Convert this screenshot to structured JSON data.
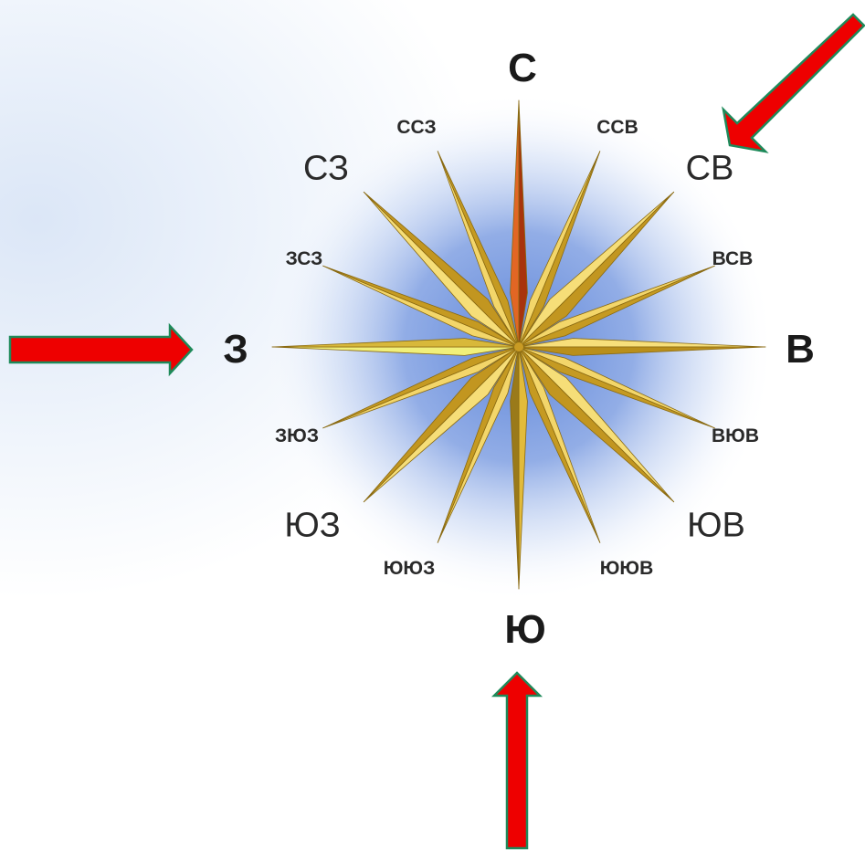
{
  "labels": {
    "n": "С",
    "s": "Ю",
    "w": "З",
    "e": "В",
    "nw": "СЗ",
    "ne": "СВ",
    "sw": "ЮЗ",
    "se": "ЮВ",
    "nnw": "ССЗ",
    "nne": "ССВ",
    "wnw": "ЗСЗ",
    "ene": "ВСВ",
    "wsw": "ЗЮЗ",
    "ese": "ВЮВ",
    "ssw": "ЮЮЗ",
    "sse": "ЮЮВ"
  },
  "colors": {
    "arrow_fill": "#ee0000",
    "arrow_stroke": "#1e8a5a",
    "north_point": "#c1440e",
    "gold_light": "#f5dd74",
    "gold_dark": "#b8921d",
    "glow": "#5f86d9"
  },
  "arrows": [
    {
      "name": "arrow-to-ne",
      "points_at": "СВ"
    },
    {
      "name": "arrow-to-w",
      "points_at": "З"
    },
    {
      "name": "arrow-to-s",
      "points_at": "Ю"
    }
  ]
}
